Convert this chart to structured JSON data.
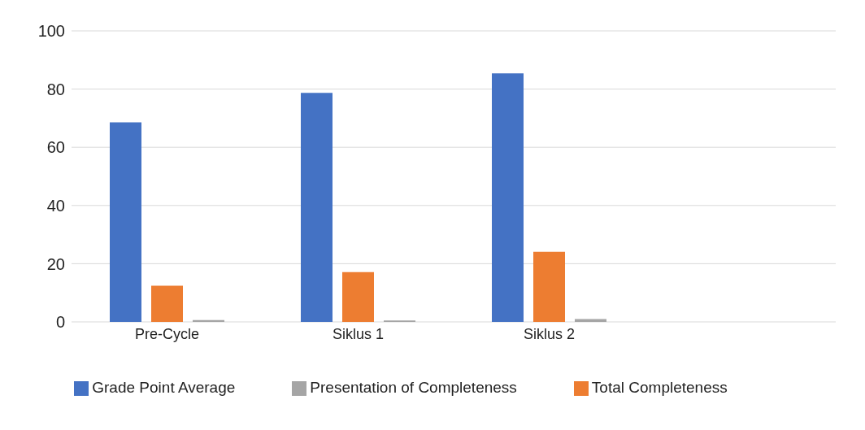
{
  "chart_data": {
    "type": "bar",
    "categories": [
      "Pre-Cycle",
      "Siklus 1",
      "Siklus 2",
      null
    ],
    "series": [
      {
        "name": "Grade Point Average",
        "color": "#4472c4",
        "values": [
          68.6,
          78.7,
          85.4,
          null
        ]
      },
      {
        "name": "Total Completeness",
        "color": "#ed7d31",
        "values": [
          12.4,
          17.1,
          24.1,
          null
        ]
      },
      {
        "name": "Presentation of Completeness",
        "color": "#a5a5a5",
        "values": [
          0.6,
          0.5,
          1,
          null
        ]
      }
    ],
    "ylim": [
      0,
      100
    ],
    "yticks": [
      0,
      20,
      40,
      60,
      80,
      100
    ],
    "grid": "y",
    "legend": "bottom"
  }
}
